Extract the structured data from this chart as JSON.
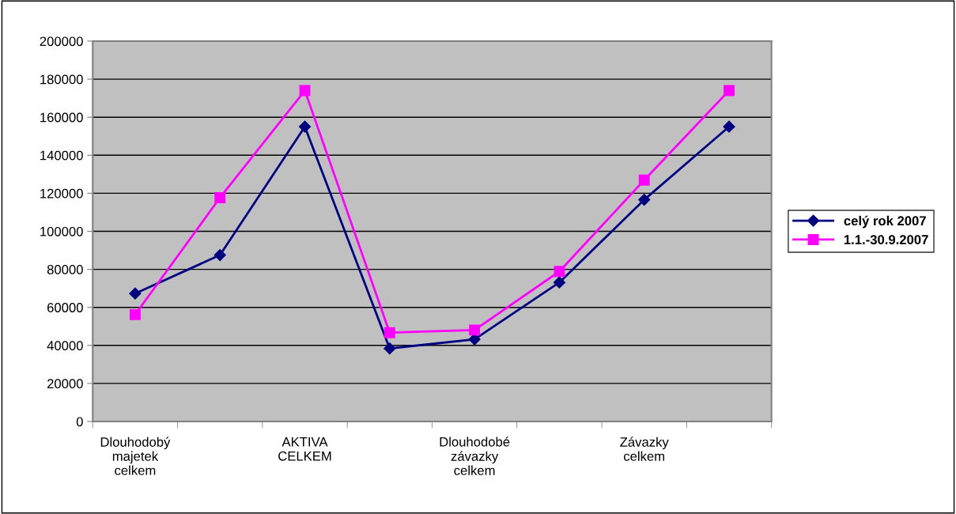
{
  "chart_data": {
    "type": "line",
    "categories": [
      "Dlouhodobý\nmajetek\ncelkem",
      null,
      "AKTIVA\nCELKEM",
      null,
      "Dlouhodobé\nzávazky\ncelkem",
      null,
      "Závazky\ncelkem",
      null
    ],
    "series": [
      {
        "name": "celý rok 2007",
        "color": "#000080",
        "marker": "diamond",
        "values": [
          67300,
          87500,
          155000,
          38400,
          43200,
          73100,
          116600,
          155000
        ]
      },
      {
        "name": "1.1.-30.9.2007",
        "color": "#ff00ff",
        "marker": "square",
        "values": [
          56200,
          117700,
          174000,
          46700,
          48100,
          78900,
          126900,
          174000
        ]
      }
    ],
    "ylim": [
      0,
      200000
    ],
    "yticks": [
      0,
      20000,
      40000,
      60000,
      80000,
      100000,
      120000,
      140000,
      160000,
      180000,
      200000
    ],
    "grid": "y",
    "legend": "right",
    "line_style": "solid"
  }
}
